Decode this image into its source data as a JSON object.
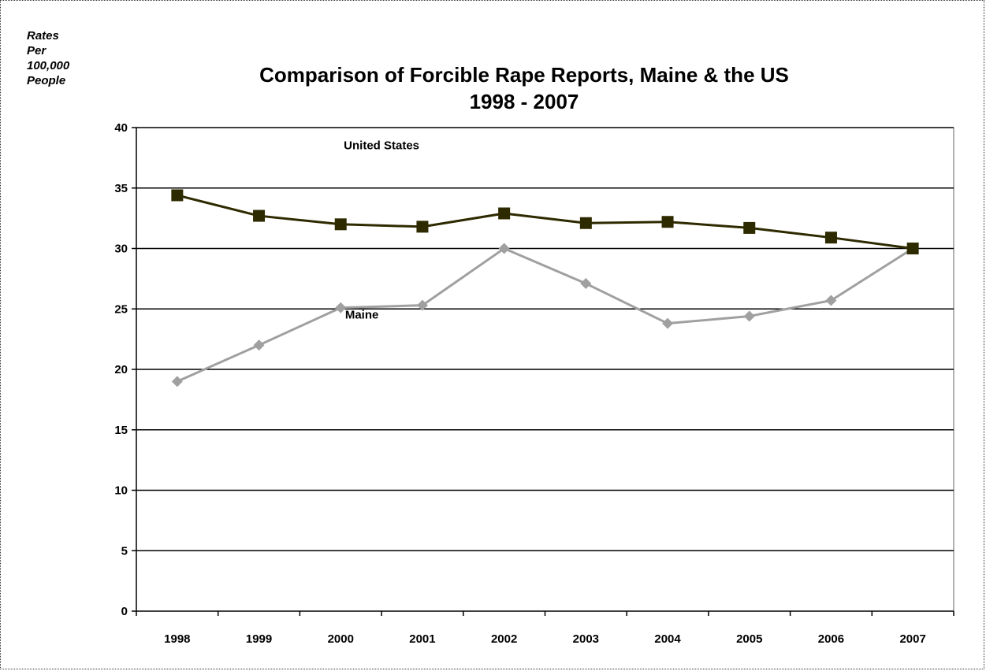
{
  "chart_data": {
    "type": "line",
    "title": "Comparison of Forcible Rape Reports, Maine & the US",
    "subtitle": "1998 - 2007",
    "ylabel_lines": [
      "Rates",
      "Per",
      "100,000",
      "People"
    ],
    "xlabel": "",
    "categories": [
      "1998",
      "1999",
      "2000",
      "2001",
      "2002",
      "2003",
      "2004",
      "2005",
      "2006",
      "2007"
    ],
    "ylim": [
      0,
      40
    ],
    "yticks": [
      0,
      5,
      10,
      15,
      20,
      25,
      30,
      35,
      40
    ],
    "grid": true,
    "series": [
      {
        "name": "United States",
        "marker": "square",
        "color": "#2e2a00",
        "values": [
          34.4,
          32.7,
          32.0,
          31.8,
          32.9,
          32.1,
          32.2,
          31.7,
          30.9,
          30.0
        ]
      },
      {
        "name": "Maine",
        "marker": "diamond",
        "color": "#a0a0a0",
        "values": [
          19.0,
          22.0,
          25.1,
          25.3,
          30.0,
          27.1,
          23.8,
          24.4,
          25.7,
          30.0
        ]
      }
    ]
  }
}
